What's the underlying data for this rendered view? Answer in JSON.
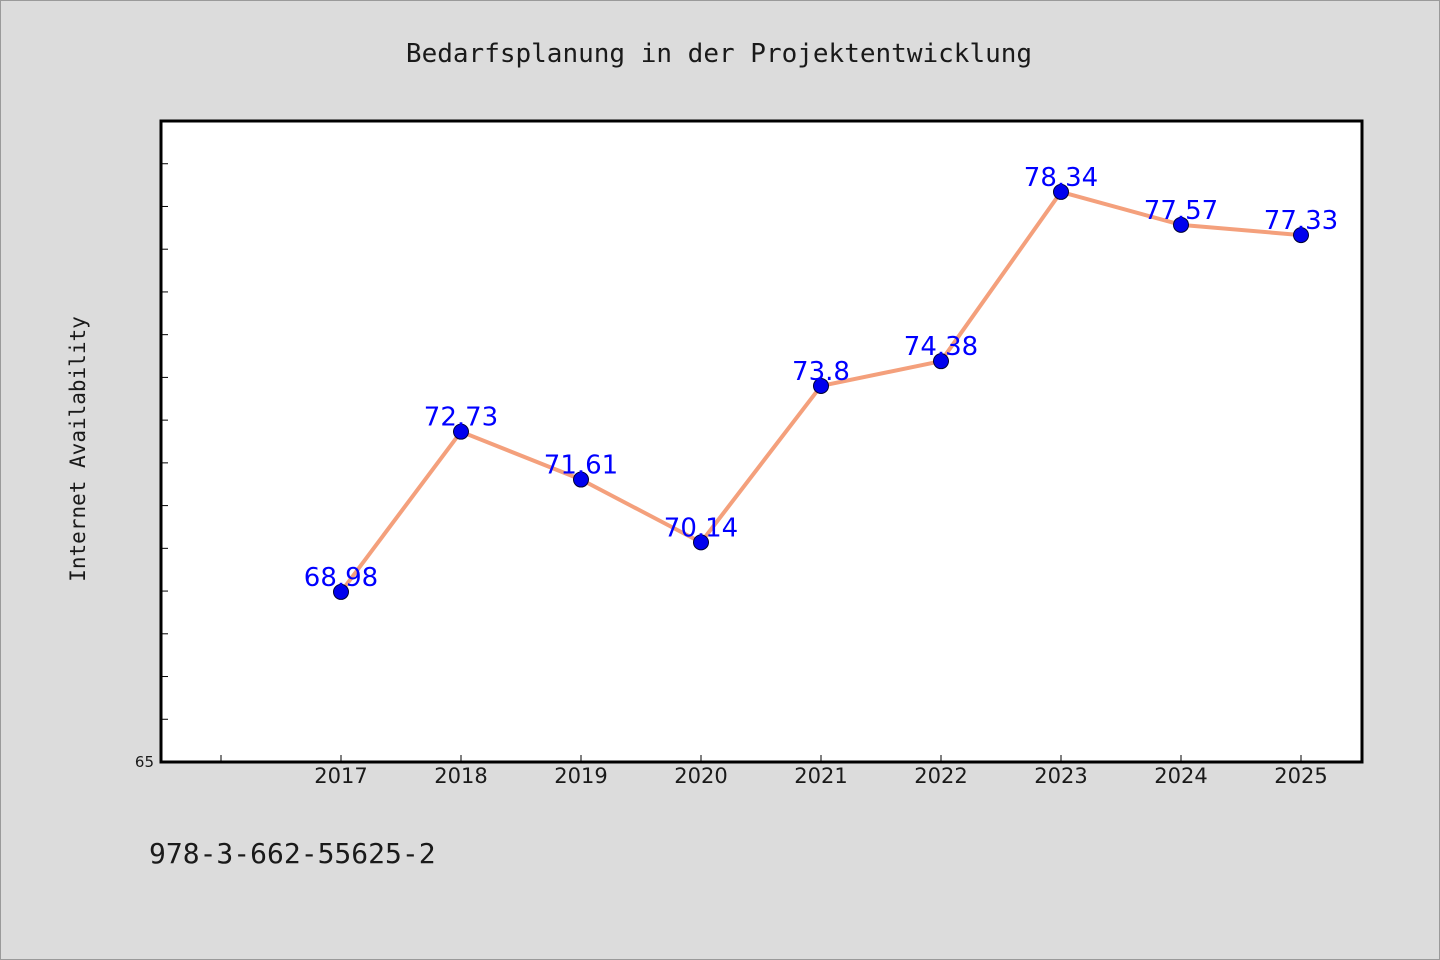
{
  "chart_data": {
    "type": "line",
    "title": "Bedarfsplanung in der Projektentwicklung",
    "xlabel": "",
    "ylabel": "Internet Availability",
    "categories": [
      "2017",
      "2018",
      "2019",
      "2020",
      "2021",
      "2022",
      "2023",
      "2024",
      "2025"
    ],
    "values": [
      68.98,
      72.73,
      71.61,
      70.14,
      73.8,
      74.38,
      78.34,
      77.57,
      77.33
    ],
    "data_labels": [
      "68.98",
      "72.73",
      "71.61",
      "70.14",
      "73.8",
      "74.38",
      "78.34",
      "77.57",
      "77.33"
    ],
    "ylim": [
      65,
      80
    ],
    "y_tick_labels": [
      "65"
    ],
    "grid": false,
    "legend": "none",
    "colors": {
      "line": "#f4a07c",
      "marker": "#0000ee",
      "label": "#0000ff"
    }
  },
  "footer": {
    "isbn": "978-3-662-55625-2"
  }
}
